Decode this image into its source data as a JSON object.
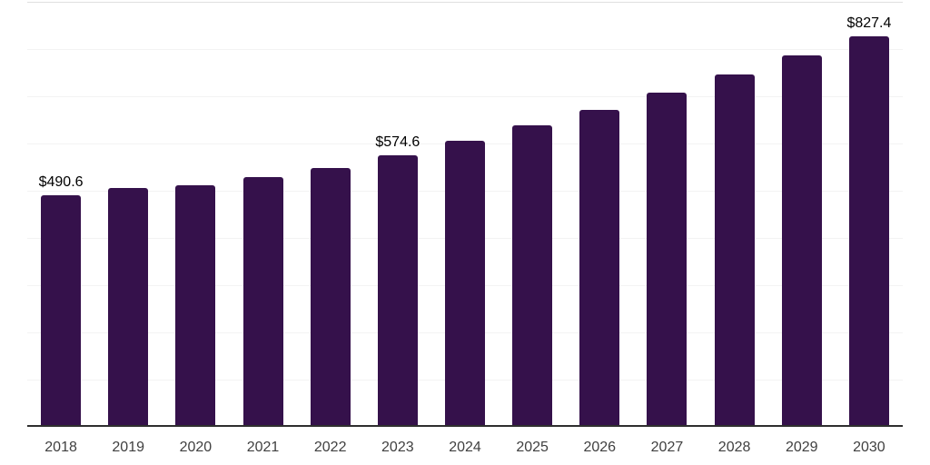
{
  "chart_style": {
    "background_color": "#ffffff",
    "bar_color": "#35114B",
    "gridline_color": "#f3f3f3",
    "top_gridline_color": "#e0e0e0",
    "axis_line_color": "#2f2f2f",
    "value_label_color": "#000000",
    "tick_label_color": "#404040"
  },
  "chart_data": {
    "type": "bar",
    "title": "",
    "xlabel": "",
    "ylabel": "",
    "categories": [
      "2018",
      "2019",
      "2020",
      "2021",
      "2022",
      "2023",
      "2024",
      "2025",
      "2026",
      "2027",
      "2028",
      "2029",
      "2030"
    ],
    "values": [
      490.6,
      505.2,
      511.5,
      528.8,
      548.7,
      574.6,
      605.3,
      637.7,
      671.9,
      707.8,
      745.7,
      785.6,
      827.4
    ],
    "data_labels": [
      "$490.6",
      "",
      "",
      "",
      "",
      "$574.6",
      "",
      "",
      "",
      "",
      "",
      "",
      "$827.4"
    ],
    "currency_prefix": "$",
    "ylim": [
      0,
      900
    ],
    "gridline_step": 100,
    "grid": "horizontal-only",
    "legend": "none",
    "y_axis_tick_labels_visible": false
  }
}
